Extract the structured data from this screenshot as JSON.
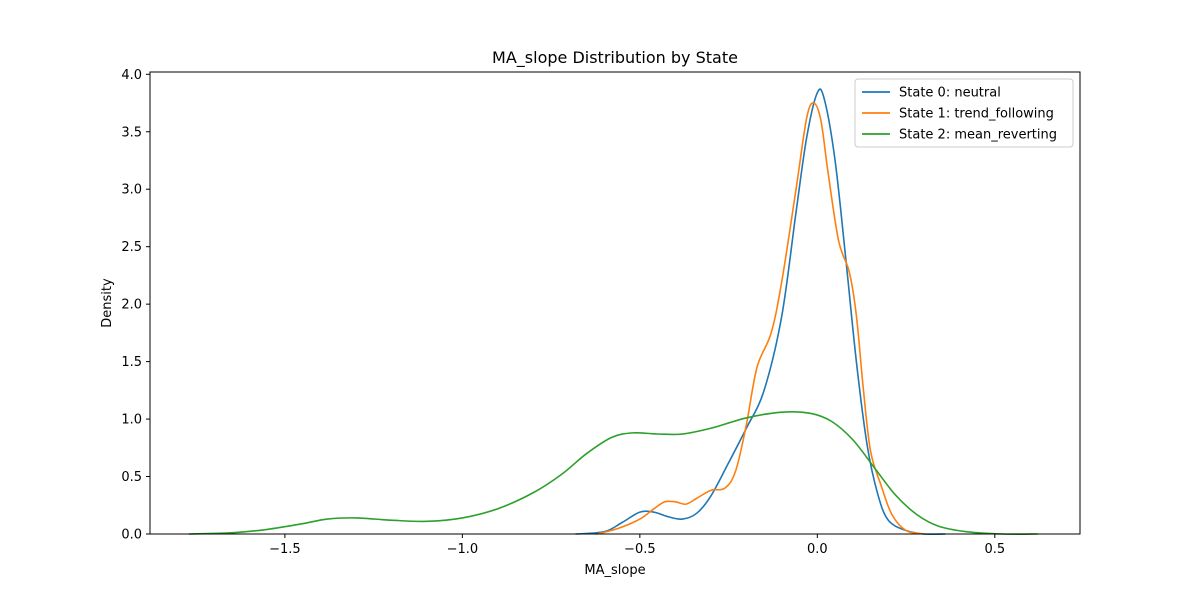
{
  "chart_data": {
    "type": "line",
    "title": "MA_slope Distribution by State",
    "xlabel": "MA_slope",
    "ylabel": "Density",
    "xlim": [
      -1.88,
      0.74
    ],
    "ylim": [
      0,
      4.02
    ],
    "xticks": [
      -1.5,
      -1.0,
      -0.5,
      0.0,
      0.5
    ],
    "xtick_labels": [
      "−1.5",
      "−1.0",
      "−0.5",
      "0.0",
      "0.5"
    ],
    "yticks": [
      0.0,
      0.5,
      1.0,
      1.5,
      2.0,
      2.5,
      3.0,
      3.5,
      4.0
    ],
    "ytick_labels": [
      "0.0",
      "0.5",
      "1.0",
      "1.5",
      "2.0",
      "2.5",
      "3.0",
      "3.5",
      "4.0"
    ],
    "grid": false,
    "legend_position": "top-right",
    "series": [
      {
        "name": "State 0: neutral",
        "color": "#1f77b4",
        "points": [
          [
            -0.68,
            0.0
          ],
          [
            -0.6,
            0.02
          ],
          [
            -0.55,
            0.1
          ],
          [
            -0.5,
            0.19
          ],
          [
            -0.46,
            0.19
          ],
          [
            -0.42,
            0.15
          ],
          [
            -0.38,
            0.13
          ],
          [
            -0.34,
            0.18
          ],
          [
            -0.3,
            0.33
          ],
          [
            -0.25,
            0.62
          ],
          [
            -0.2,
            0.92
          ],
          [
            -0.15,
            1.25
          ],
          [
            -0.1,
            1.9
          ],
          [
            -0.06,
            2.8
          ],
          [
            -0.03,
            3.45
          ],
          [
            0.0,
            3.84
          ],
          [
            0.02,
            3.78
          ],
          [
            0.05,
            3.25
          ],
          [
            0.08,
            2.4
          ],
          [
            0.11,
            1.5
          ],
          [
            0.14,
            0.78
          ],
          [
            0.17,
            0.35
          ],
          [
            0.2,
            0.12
          ],
          [
            0.25,
            0.03
          ],
          [
            0.3,
            0.0
          ],
          [
            0.36,
            0.0
          ]
        ]
      },
      {
        "name": "State 1: trend_following",
        "color": "#ff7f0e",
        "points": [
          [
            -0.62,
            0.0
          ],
          [
            -0.56,
            0.05
          ],
          [
            -0.5,
            0.13
          ],
          [
            -0.46,
            0.22
          ],
          [
            -0.43,
            0.28
          ],
          [
            -0.4,
            0.28
          ],
          [
            -0.37,
            0.26
          ],
          [
            -0.34,
            0.31
          ],
          [
            -0.3,
            0.38
          ],
          [
            -0.26,
            0.4
          ],
          [
            -0.23,
            0.55
          ],
          [
            -0.2,
            0.95
          ],
          [
            -0.17,
            1.45
          ],
          [
            -0.13,
            1.75
          ],
          [
            -0.1,
            2.2
          ],
          [
            -0.06,
            3.0
          ],
          [
            -0.03,
            3.62
          ],
          [
            -0.01,
            3.75
          ],
          [
            0.01,
            3.6
          ],
          [
            0.03,
            3.15
          ],
          [
            0.06,
            2.55
          ],
          [
            0.09,
            2.28
          ],
          [
            0.11,
            1.9
          ],
          [
            0.13,
            1.25
          ],
          [
            0.15,
            0.72
          ],
          [
            0.18,
            0.42
          ],
          [
            0.21,
            0.17
          ],
          [
            0.25,
            0.03
          ],
          [
            0.3,
            0.0
          ]
        ]
      },
      {
        "name": "State 2: mean_reverting",
        "color": "#2ca02c",
        "points": [
          [
            -1.77,
            0.0
          ],
          [
            -1.65,
            0.01
          ],
          [
            -1.55,
            0.04
          ],
          [
            -1.45,
            0.09
          ],
          [
            -1.38,
            0.13
          ],
          [
            -1.3,
            0.14
          ],
          [
            -1.2,
            0.12
          ],
          [
            -1.1,
            0.11
          ],
          [
            -1.0,
            0.14
          ],
          [
            -0.9,
            0.22
          ],
          [
            -0.8,
            0.36
          ],
          [
            -0.72,
            0.52
          ],
          [
            -0.65,
            0.7
          ],
          [
            -0.58,
            0.84
          ],
          [
            -0.52,
            0.88
          ],
          [
            -0.45,
            0.87
          ],
          [
            -0.38,
            0.87
          ],
          [
            -0.3,
            0.92
          ],
          [
            -0.2,
            1.01
          ],
          [
            -0.1,
            1.06
          ],
          [
            -0.02,
            1.05
          ],
          [
            0.04,
            0.98
          ],
          [
            0.1,
            0.82
          ],
          [
            0.16,
            0.58
          ],
          [
            0.22,
            0.34
          ],
          [
            0.28,
            0.17
          ],
          [
            0.34,
            0.07
          ],
          [
            0.42,
            0.02
          ],
          [
            0.52,
            0.0
          ],
          [
            0.62,
            0.0
          ]
        ]
      }
    ]
  }
}
